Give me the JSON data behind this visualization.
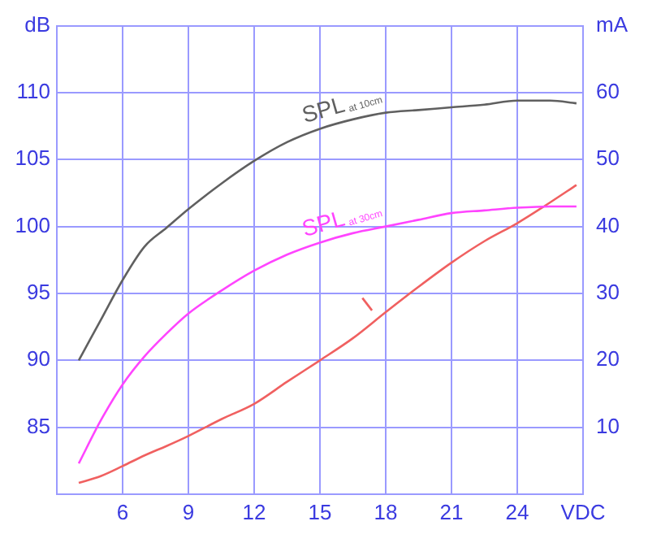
{
  "chart_data": {
    "type": "line",
    "x": [
      4,
      5,
      6,
      7,
      8,
      9,
      10.5,
      12,
      13.5,
      15,
      16.5,
      18,
      19.5,
      21,
      22.5,
      24,
      25.5,
      26.7
    ],
    "series": [
      {
        "name": "SPL$_{at 10cm}$",
        "color": "#606060",
        "values": [
          90,
          93,
          96,
          98.5,
          99.9,
          101.3,
          103.2,
          104.9,
          106.3,
          107.3,
          108,
          108.5,
          108.7,
          108.9,
          109.1,
          109.4,
          109.4,
          109.2
        ]
      },
      {
        "name": "SPL$_{at 30cm}$",
        "color": "#ff44ff",
        "values": [
          82.3,
          85.5,
          88.2,
          90.3,
          92,
          93.5,
          95.2,
          96.7,
          97.9,
          98.8,
          99.5,
          100,
          100.5,
          101,
          101.2,
          101.4,
          101.5,
          101.5
        ]
      },
      {
        "name": "I",
        "color": "#f06060",
        "axis": "y2",
        "values": [
          1.7,
          2.7,
          4.2,
          5.8,
          7.2,
          8.7,
          11.2,
          13.5,
          16.8,
          20,
          23.3,
          27.2,
          31,
          34.6,
          37.8,
          40.5,
          43.6,
          46.2
        ]
      }
    ],
    "xlim": [
      3,
      27
    ],
    "xticks": [
      {
        "value": 3,
        "label": null
      },
      6,
      9,
      12,
      15,
      18,
      21,
      24,
      {
        "value": 27,
        "label": "VDC"
      }
    ],
    "ylim": [
      80,
      115
    ],
    "yticks": [
      85,
      90,
      95,
      100,
      105,
      110,
      {
        "value": 115,
        "label": "dB"
      }
    ],
    "y2lim": [
      0,
      70
    ],
    "y2ticks": [
      10,
      20,
      30,
      40,
      50,
      60,
      {
        "value": 70,
        "label": "mA"
      }
    ],
    "grid": true,
    "legend": false,
    "marker": "none",
    "line_style": "solid"
  }
}
